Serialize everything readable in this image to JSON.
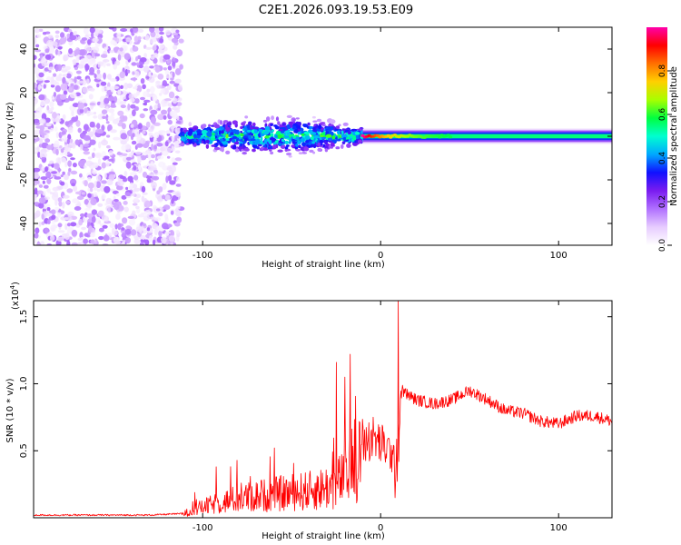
{
  "title": "C2E1.2026.093.19.53.E09",
  "colors": {
    "snr_line": "#ff0000",
    "noise": "#8a2be2",
    "colormap": [
      "#ffffff",
      "#e7ccff",
      "#b070ff",
      "#7a1cf0",
      "#1010ff",
      "#00a8ff",
      "#00ffd0",
      "#00ff40",
      "#a8ff00",
      "#ffd000",
      "#ff7000",
      "#ff0000",
      "#ff00aa"
    ]
  },
  "chart_data": [
    {
      "type": "heatmap",
      "title": "C2E1.2026.093.19.53.E09",
      "xlabel": "Height of straight line (km)",
      "ylabel": "Frequency (Hz)",
      "xlim": [
        -195,
        130
      ],
      "ylim": [
        -50,
        50
      ],
      "xticks": [
        -100,
        0,
        100
      ],
      "yticks": [
        -40,
        -20,
        0,
        20,
        40
      ],
      "colorbar": {
        "label": "Normalized spectral amplitude",
        "range": [
          0,
          1
        ],
        "ticks": [
          "0.0",
          "0.2",
          "0.4",
          "0.6",
          "0.8"
        ]
      },
      "regions": [
        {
          "name": "noise",
          "x_range": [
            -195,
            -112
          ],
          "freq_range": [
            -50,
            50
          ],
          "amplitude": 0.1
        },
        {
          "name": "scattered-signal",
          "x_range": [
            -112,
            -10
          ],
          "freq_center": 0,
          "freq_halfwidth": [
            4,
            8
          ],
          "amplitude": [
            0.2,
            0.55
          ]
        },
        {
          "name": "coherent-signal",
          "x_range": [
            -10,
            130
          ],
          "freq_center": 0,
          "freq_halfwidth": 3.5,
          "amplitude_peak": 1.0
        }
      ]
    },
    {
      "type": "line",
      "xlabel": "Height of straight line (km)",
      "ylabel": "SNR (10 * v/v)",
      "y_multiplier": "(x10",
      "y_multiplier_exp": "4",
      "y_multiplier_close": ")",
      "xlim": [
        -195,
        130
      ],
      "ylim": [
        0,
        1.62
      ],
      "xticks": [
        -100,
        0,
        100
      ],
      "yticks": [
        "0.5",
        "1.0",
        "1.5"
      ],
      "series": [
        {
          "name": "SNR",
          "units": "x10^4",
          "x": [
            -195,
            -130,
            -112,
            -100,
            -80,
            -60,
            -40,
            -25,
            -18,
            -15,
            -12,
            -10,
            -5,
            0,
            5,
            8,
            9,
            10,
            12,
            15,
            20,
            30,
            40,
            50,
            60,
            70,
            80,
            90,
            100,
            110,
            120,
            130
          ],
          "level": [
            0.02,
            0.02,
            0.03,
            0.1,
            0.18,
            0.22,
            0.25,
            0.3,
            0.45,
            0.55,
            0.55,
            0.55,
            0.6,
            0.55,
            0.5,
            0.4,
            0.7,
            0.85,
            0.95,
            0.92,
            0.88,
            0.85,
            0.88,
            0.95,
            0.88,
            0.8,
            0.78,
            0.72,
            0.7,
            0.76,
            0.76,
            0.72
          ],
          "peaks": [
            [
              -25,
              1.16
            ],
            [
              -20,
              1.05
            ],
            [
              -17,
              1.22
            ],
            [
              10,
              1.62
            ]
          ]
        }
      ]
    }
  ]
}
